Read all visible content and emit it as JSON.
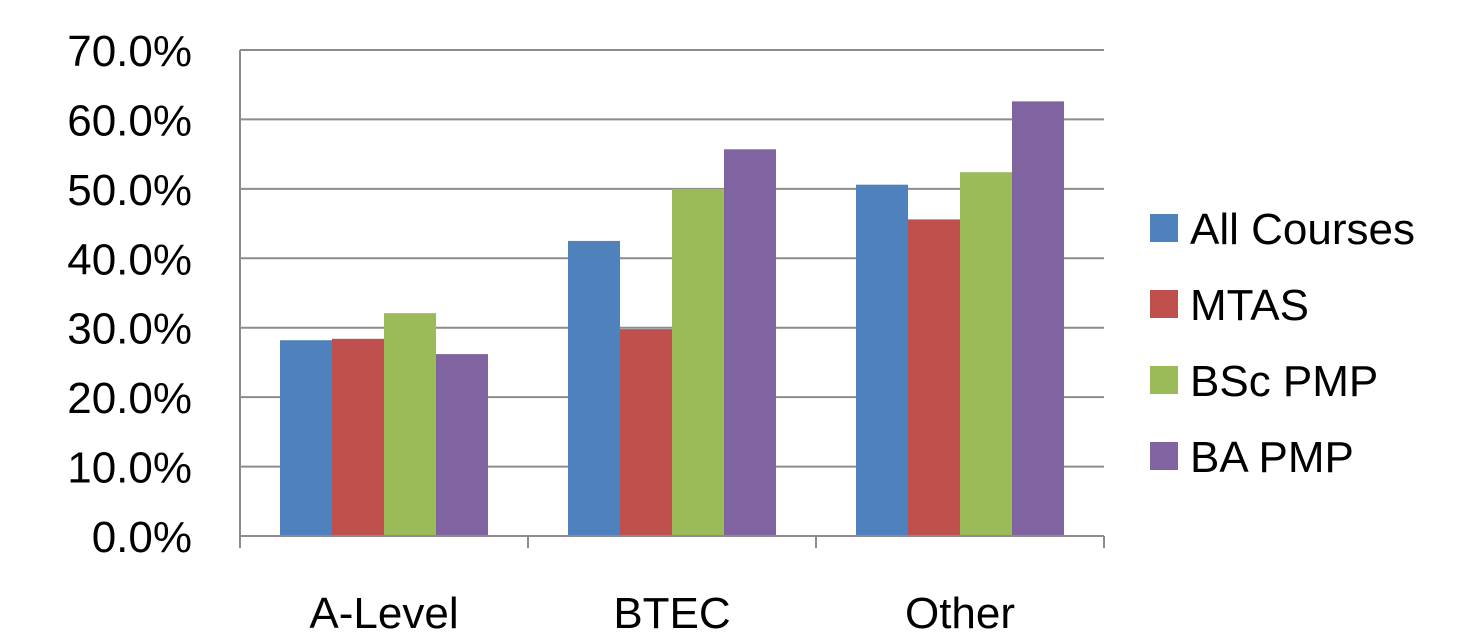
{
  "chart_data": {
    "type": "bar",
    "title": "",
    "xlabel": "",
    "ylabel": "",
    "categories": [
      "A-Level",
      "BTEC",
      "Other"
    ],
    "series": [
      {
        "name": "All Courses",
        "color": "#4F81BD",
        "values": [
          28.2,
          42.5,
          50.6
        ]
      },
      {
        "name": "MTAS",
        "color": "#C0504D",
        "values": [
          28.4,
          29.8,
          45.6
        ]
      },
      {
        "name": "BSc PMP",
        "color": "#9BBB59",
        "values": [
          32.1,
          50.0,
          52.4
        ]
      },
      {
        "name": "BA PMP",
        "color": "#8064A2",
        "values": [
          26.2,
          55.7,
          62.6
        ]
      }
    ],
    "ylim": [
      0,
      70
    ],
    "yticks": [
      0,
      10,
      20,
      30,
      40,
      50,
      60,
      70
    ],
    "ytick_labels": [
      "0.0%",
      "10.0%",
      "20.0%",
      "30.0%",
      "40.0%",
      "50.0%",
      "60.0%",
      "70.0%"
    ],
    "grid": true,
    "legend_position": "right"
  }
}
